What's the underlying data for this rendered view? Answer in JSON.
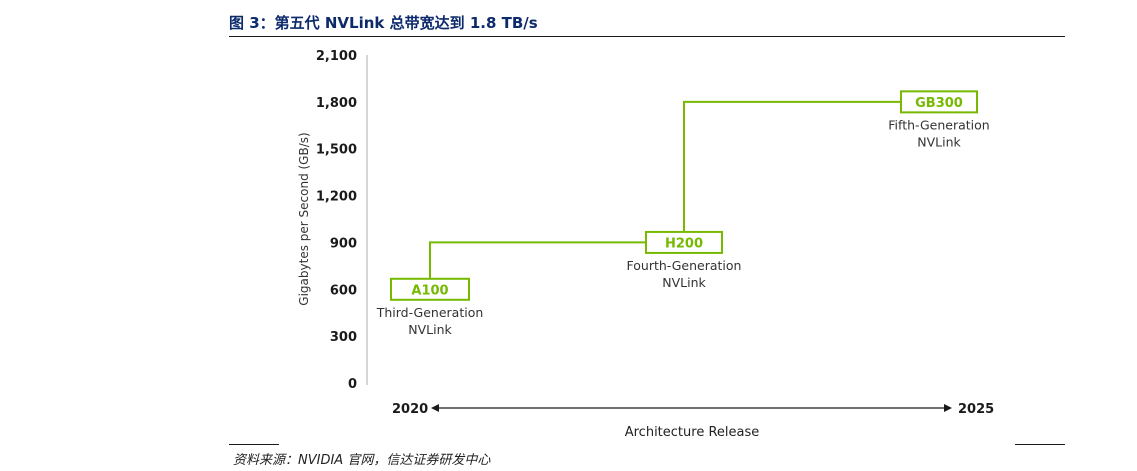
{
  "figure": {
    "title": "图 3：第五代 NVLink 总带宽达到 1.8 TB/s",
    "source": "资料来源：NVIDIA 官网，信达证券研发中心"
  },
  "colors": {
    "accent": "#76b900",
    "axis": "#1a1a1a",
    "title": "#0d2a6b"
  },
  "chart_data": {
    "type": "line",
    "step": true,
    "ylabel": "Gigabytes per Second (GB/s)",
    "xlabel": "Architecture Release",
    "ylim": [
      0,
      2100
    ],
    "yticks": [
      "2,100",
      "1,800",
      "1,500",
      "1,200",
      "900",
      "600",
      "300",
      "0"
    ],
    "ytick_values": [
      2100,
      1800,
      1500,
      1200,
      900,
      600,
      300,
      0
    ],
    "x_start_label": "2020",
    "x_end_label": "2025",
    "grid": false,
    "series": [
      {
        "points": [
          {
            "product": "A100",
            "generation_line1": "Third-Generation",
            "generation_line2": "NVLink",
            "value": 600
          },
          {
            "product": "H200",
            "generation_line1": "Fourth-Generation",
            "generation_line2": "NVLink",
            "value": 900
          },
          {
            "product": "GB300",
            "generation_line1": "Fifth-Generation",
            "generation_line2": "NVLink",
            "value": 1800
          }
        ]
      }
    ]
  }
}
